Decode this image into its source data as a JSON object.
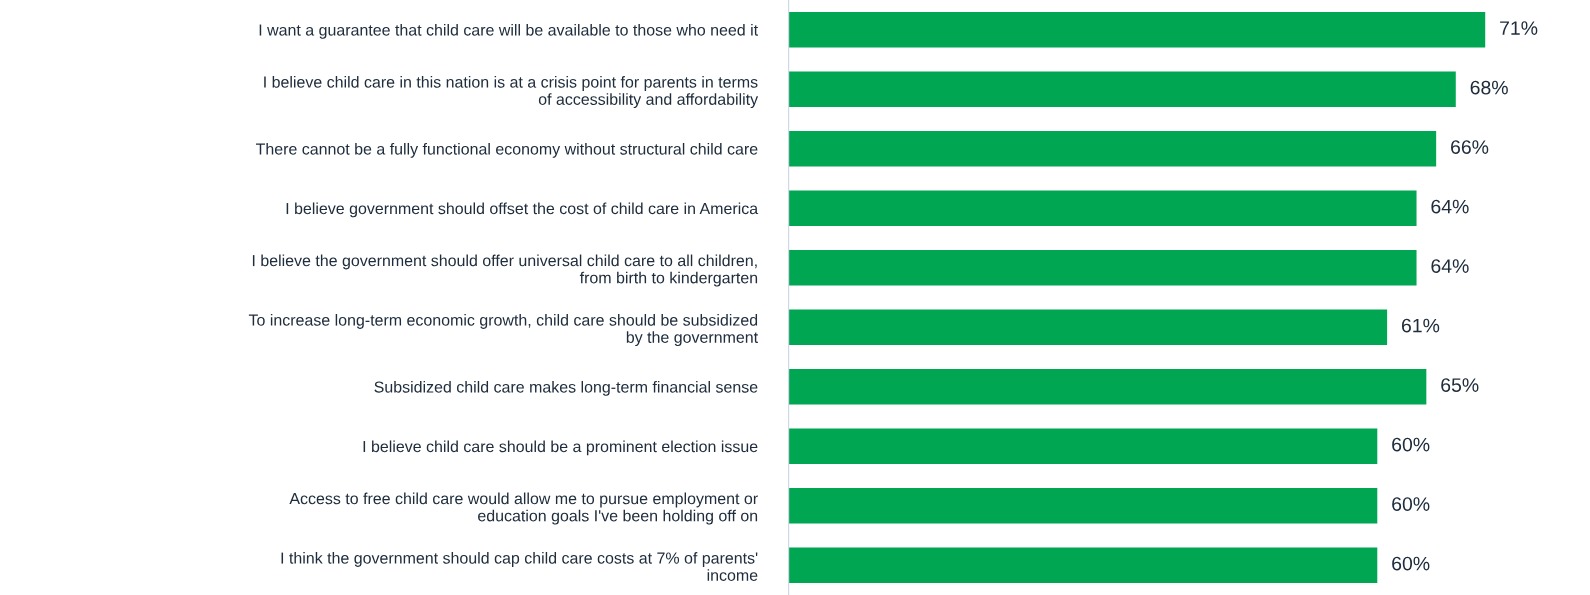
{
  "chart_data": {
    "type": "bar",
    "orientation": "horizontal",
    "categories": [
      "I want a guarantee that child care will be available to those who need it",
      "I believe child care in this nation is at a crisis point for parents in terms\nof accessibility and affordability",
      "There cannot be a fully functional economy without structural child care",
      "I believe government should offset the cost of child care in America",
      "I believe the government should offer universal child care to all children,\nfrom birth to kindergarten",
      "To increase long-term economic growth, child care should be subsidized\nby the government",
      "Subsidized child care makes long-term financial sense",
      "I believe child care should be a prominent election issue",
      "Access to free child care would allow me to pursue employment or\neducation goals I've been holding off on",
      "I think the government should cap child care costs at 7% of parents'\nincome"
    ],
    "values": [
      71,
      68,
      66,
      64,
      64,
      61,
      65,
      60,
      60,
      60
    ],
    "value_labels": [
      "71%",
      "68%",
      "66%",
      "64%",
      "64%",
      "61%",
      "65%",
      "60%",
      "60%",
      "60%"
    ],
    "color": "#00a651",
    "tick_labels": "y",
    "grid": false,
    "legend": false
  }
}
